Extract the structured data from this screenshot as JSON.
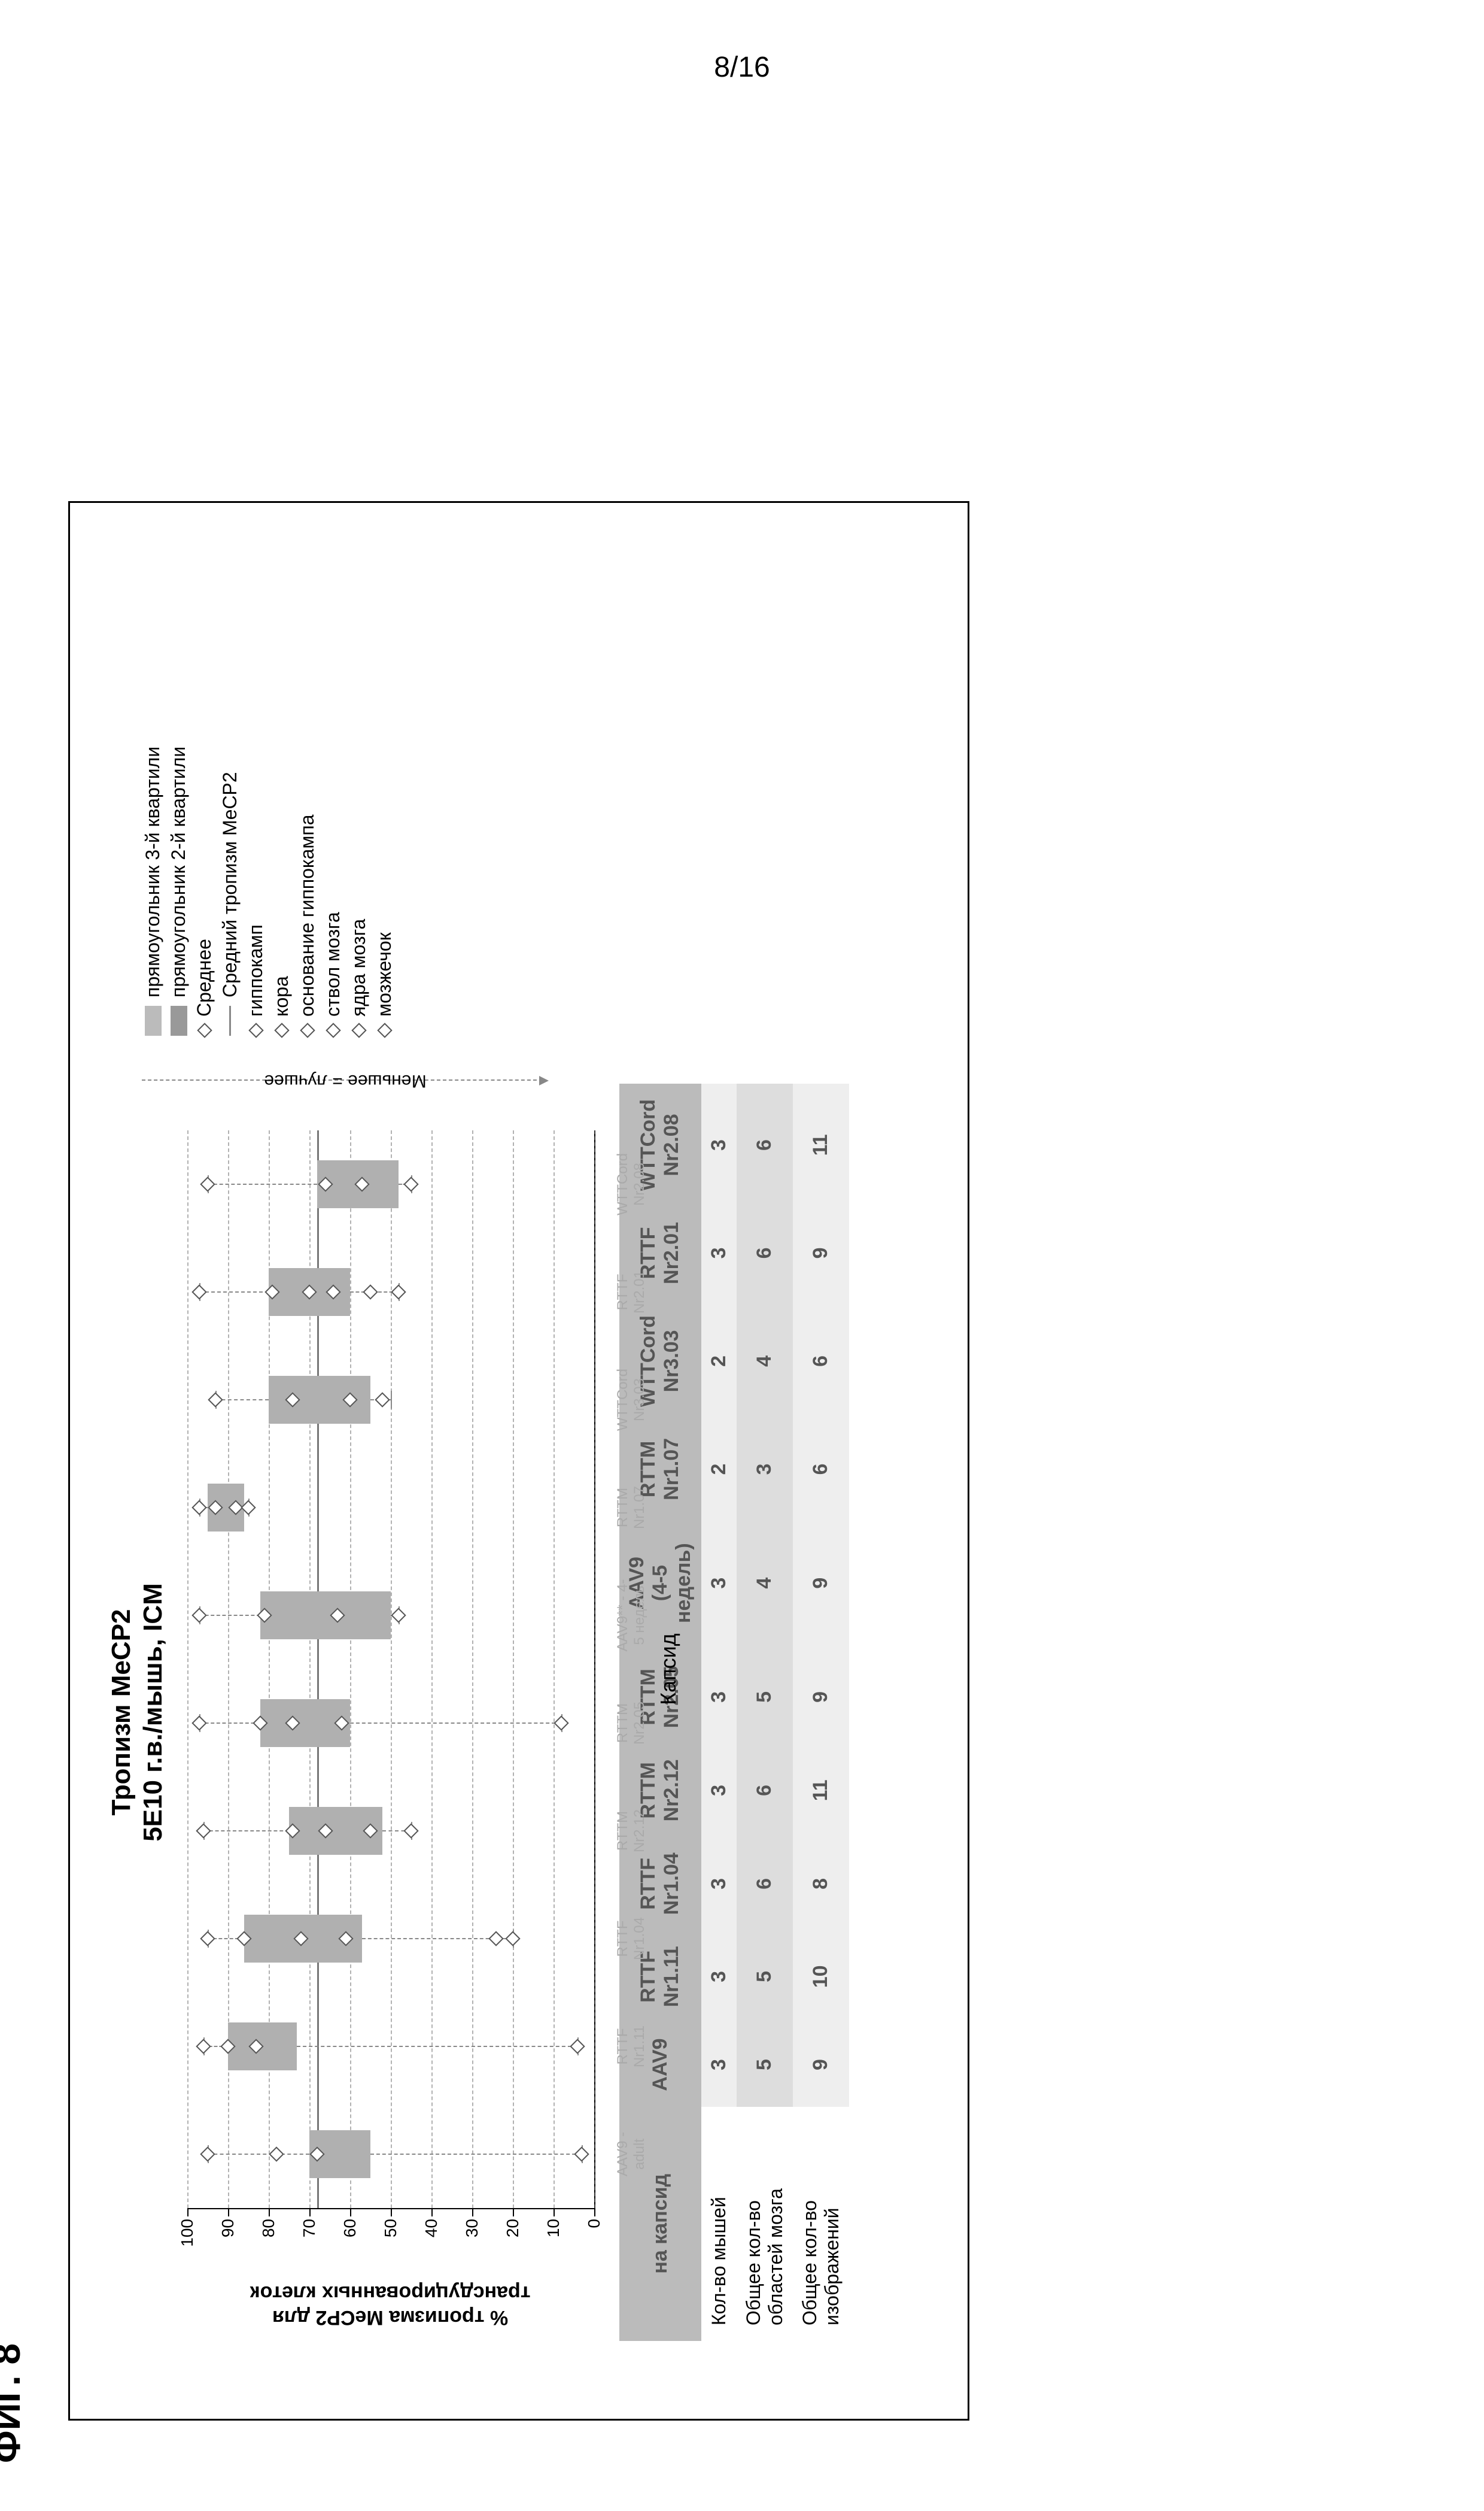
{
  "page_number": "8/16",
  "figure_label": "ФИГ. 8",
  "chart": {
    "type": "boxplot",
    "title_line1": "Тропизм MeCP2",
    "title_line2": "5E10 г.в./мышь, ICM",
    "y_label_line1": "% тропизма MeCP2 для",
    "y_label_line2": "трансдуцированных клеток",
    "x_axis_title": "Капсид",
    "ylim": [
      0,
      100
    ],
    "ytick_step": 10,
    "grid_color": "#888888",
    "box_fill": "#b0b0b0",
    "whisker_color": "#888888",
    "point_border": "#555555",
    "background": "#ffffff",
    "mean_tropism_line": 68,
    "categories": [
      {
        "id": "aav9_adult",
        "l1": "AAV9 -",
        "l2": "adult",
        "q1": 70,
        "q2": 64,
        "q3": 55,
        "wlo": 3,
        "whi": 95,
        "pts": [
          95,
          78,
          68,
          3
        ]
      },
      {
        "id": "rttf_nr111",
        "l1": "RTTF",
        "l2": "Nr1.11",
        "q1": 90,
        "q2": 82,
        "q3": 73,
        "wlo": 4,
        "whi": 96,
        "pts": [
          96,
          90,
          83,
          4
        ]
      },
      {
        "id": "rttf_nr104",
        "l1": "RTTF",
        "l2": "Nr1.04",
        "q1": 86,
        "q2": 72,
        "q3": 57,
        "wlo": 20,
        "whi": 95,
        "pts": [
          95,
          86,
          72,
          61,
          24,
          20
        ]
      },
      {
        "id": "rttm_nr212",
        "l1": "RTTM",
        "l2": "Nr2.12",
        "q1": 75,
        "q2": 65,
        "q3": 52,
        "wlo": 45,
        "whi": 96,
        "pts": [
          96,
          74,
          66,
          55,
          45
        ]
      },
      {
        "id": "rttm_nr205",
        "l1": "RTTM",
        "l2": "Nr2.05",
        "q1": 82,
        "q2": 74,
        "q3": 60,
        "wlo": 8,
        "whi": 97,
        "pts": [
          97,
          82,
          74,
          62,
          8
        ]
      },
      {
        "id": "aav9_45w",
        "l1": "AAV9** - 4-",
        "l2": "5 недель",
        "q1": 82,
        "q2": 60,
        "q3": 50,
        "wlo": 48,
        "whi": 97,
        "pts": [
          97,
          81,
          63,
          48
        ]
      },
      {
        "id": "rttm_nr107",
        "l1": "RTTM",
        "l2": "Nr1.07",
        "q1": 95,
        "q2": 90,
        "q3": 86,
        "wlo": 85,
        "whi": 97,
        "pts": [
          97,
          93,
          88,
          85
        ]
      },
      {
        "id": "wttcord_nr303",
        "l1": "WTTCord",
        "l2": "Nr3.03",
        "q1": 80,
        "q2": 70,
        "q3": 55,
        "wlo": 50,
        "whi": 93,
        "pts": [
          93,
          74,
          60,
          52
        ]
      },
      {
        "id": "rttf_nr201",
        "l1": "RTTF",
        "l2": "Nr2.01",
        "q1": 80,
        "q2": 70,
        "q3": 60,
        "wlo": 48,
        "whi": 97,
        "pts": [
          97,
          79,
          70,
          64,
          55,
          48
        ]
      },
      {
        "id": "wttcord_nr208",
        "l1": "WTTCord",
        "l2": "Nr2.08",
        "q1": 68,
        "q2": 55,
        "q3": 48,
        "wlo": 45,
        "whi": 95,
        "pts": [
          95,
          66,
          57,
          45
        ]
      }
    ],
    "legend": {
      "q3": "прямоугольник 3-й квартили",
      "q2": "прямоугольник 2-й квартили",
      "mean": "Среднее",
      "mean_line": "Средний тропизм MeCP2",
      "r1": "гиппокамп",
      "r2": "кора",
      "r3": "основание гиппокампа",
      "r4": "ствол мозга",
      "r5": "ядра мозга",
      "r6": "мозжечок"
    },
    "arrow_label": "Меньшее = лучшее"
  },
  "table": {
    "header_label": "на капсид",
    "row_labels": [
      "Кол-во мышей",
      "Общее кол-во областей мозга",
      "Общее кол-во изображений"
    ],
    "columns": [
      "AAV9",
      "Nr1.11",
      "Nr1.04",
      "Nr2.12",
      "Nr2.05",
      "AAV9\n(4-5 недель)",
      "Nr1.07",
      "Nr3.03",
      "Nr2.01",
      "Nr2.08"
    ],
    "col_prefix": [
      "",
      "RTTF",
      "RTTF",
      "RTTM",
      "RTTM",
      "",
      "RTTM",
      "WTTCord",
      "RTTF",
      "WTTCord"
    ],
    "rows": [
      [
        3,
        3,
        3,
        3,
        3,
        3,
        2,
        2,
        3,
        3
      ],
      [
        5,
        5,
        6,
        6,
        5,
        4,
        3,
        4,
        6,
        6
      ],
      [
        9,
        10,
        8,
        11,
        9,
        9,
        6,
        6,
        9,
        11
      ]
    ]
  }
}
